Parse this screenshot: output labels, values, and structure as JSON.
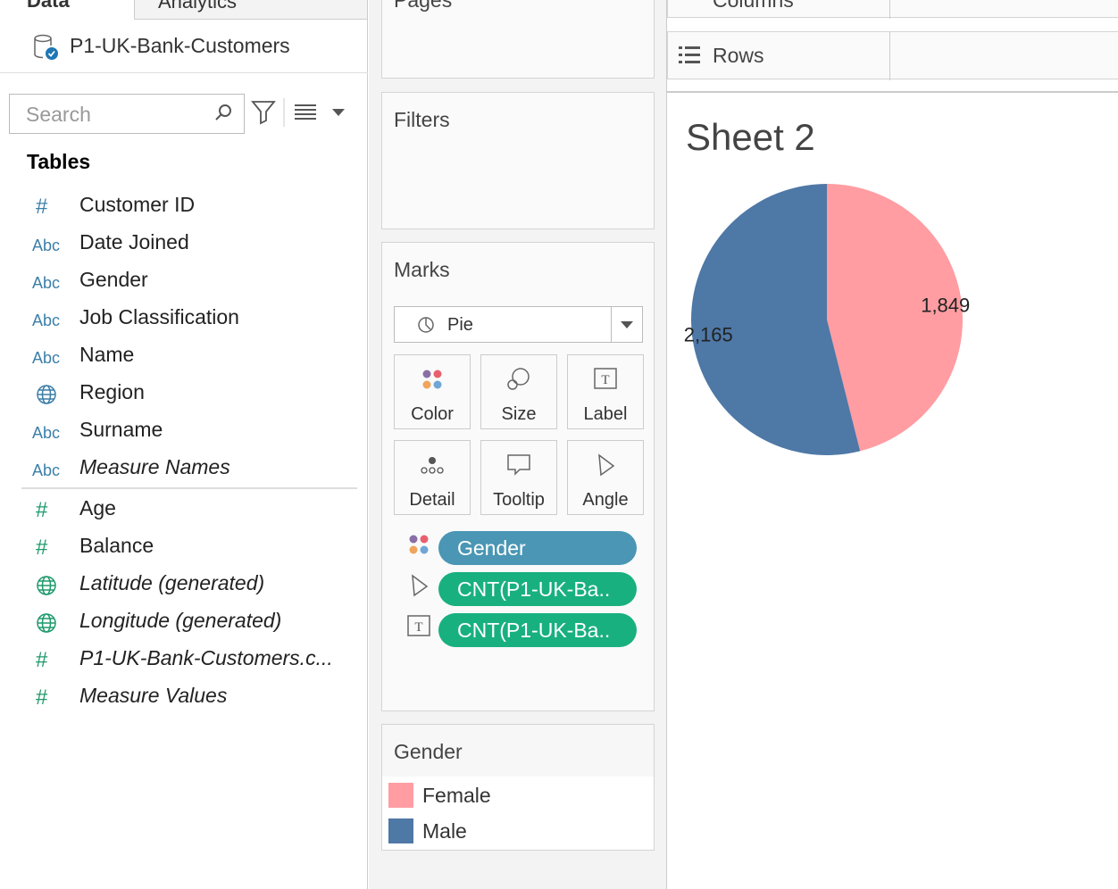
{
  "tabs": [
    "Data",
    "Analytics"
  ],
  "datasource": "P1-UK-Bank-Customers",
  "search_placeholder": "Search",
  "tables_heading": "Tables",
  "dimensions": [
    {
      "icon": "#",
      "name": "Customer ID",
      "italic": false
    },
    {
      "icon": "Abc",
      "name": "Date Joined",
      "italic": false
    },
    {
      "icon": "Abc",
      "name": "Gender",
      "italic": false
    },
    {
      "icon": "Abc",
      "name": "Job Classification",
      "italic": false
    },
    {
      "icon": "Abc",
      "name": "Name",
      "italic": false
    },
    {
      "icon": "geo",
      "name": "Region",
      "italic": false
    },
    {
      "icon": "Abc",
      "name": "Surname",
      "italic": false
    },
    {
      "icon": "Abc",
      "name": "Measure Names",
      "italic": true
    }
  ],
  "measures": [
    {
      "icon": "#",
      "name": "Age",
      "italic": false
    },
    {
      "icon": "#",
      "name": "Balance",
      "italic": false
    },
    {
      "icon": "geo",
      "name": "Latitude (generated)",
      "italic": true
    },
    {
      "icon": "geo",
      "name": "Longitude (generated)",
      "italic": true
    },
    {
      "icon": "#",
      "name": "P1-UK-Bank-Customers.c...",
      "italic": true
    },
    {
      "icon": "#",
      "name": "Measure Values",
      "italic": true
    }
  ],
  "shelves": {
    "pages": "Pages",
    "columns": "Columns",
    "rows": "Rows",
    "filters": "Filters"
  },
  "marks": {
    "title": "Marks",
    "mark_type": "Pie",
    "cards": [
      "Color",
      "Size",
      "Label",
      "Detail",
      "Tooltip",
      "Angle"
    ],
    "pills": [
      {
        "icon": "color",
        "text": "Gender",
        "color": "#4a96b4"
      },
      {
        "icon": "angle",
        "text": "CNT(P1-UK-Ba..",
        "color": "#19b07f"
      },
      {
        "icon": "label",
        "text": "CNT(P1-UK-Ba..",
        "color": "#19b07f"
      }
    ]
  },
  "legend": {
    "title": "Gender"
  },
  "sheet_title": "Sheet 2",
  "chart_data": {
    "type": "pie",
    "categories": [
      "Female",
      "Male"
    ],
    "values": [
      1849,
      2165
    ],
    "value_labels": [
      "1,849",
      "2,165"
    ],
    "colors": [
      "#ff9da2",
      "#4e78a6"
    ]
  }
}
